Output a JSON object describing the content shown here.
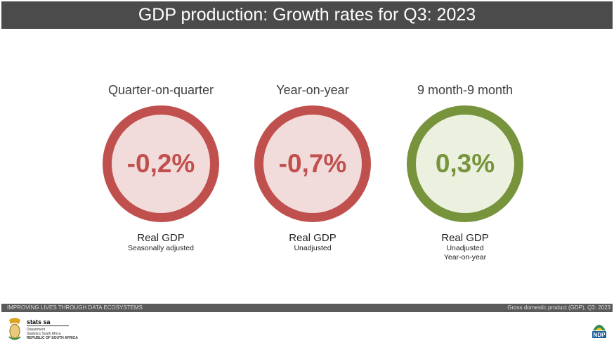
{
  "title": "GDP production: Growth rates for Q3: 2023",
  "stats": [
    {
      "heading": "Quarter-on-quarter",
      "value": "-0,2%",
      "measure": "Real GDP",
      "notes": [
        "Seasonally adjusted"
      ],
      "color": "#c0504d"
    },
    {
      "heading": "Year-on-year",
      "value": "-0,7%",
      "measure": "Real GDP",
      "notes": [
        "Unadjusted"
      ],
      "color": "#c0504d"
    },
    {
      "heading": "9 month-9 month",
      "value": "0,3%",
      "measure": "Real GDP",
      "notes": [
        "Unadjusted",
        "Year-on-year"
      ],
      "color": "#77933c"
    }
  ],
  "footer": {
    "slogan": "IMPROVING LIVES THROUGH DATA ECOSYSTEMS",
    "caption": "Gross domestic product (GDP), Q3: 2023",
    "logo": {
      "brand": "stats sa",
      "line1": "Department",
      "line2": "Statistics South Africa",
      "line3": "REPUBLIC OF SOUTH AFRICA"
    },
    "ndp_logo": "NDP"
  }
}
